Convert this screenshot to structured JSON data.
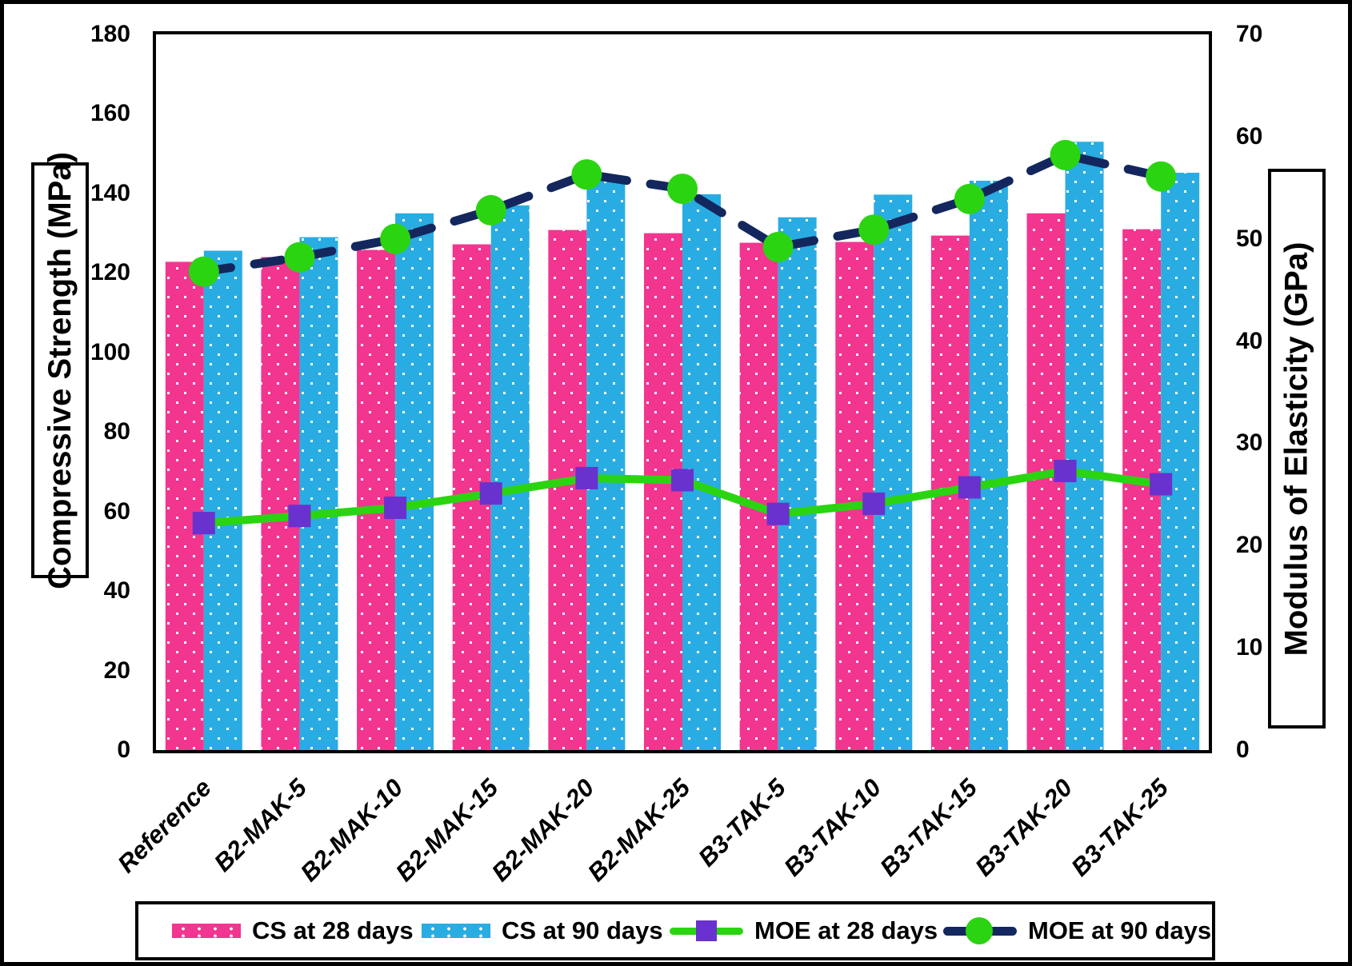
{
  "chart_data": {
    "type": "combo-bar-line",
    "title": "",
    "categories": [
      "Reference",
      "B2-MAK-5",
      "B2-MAK-10",
      "B2-MAK-15",
      "B2-MAK-20",
      "B2-MAK-25",
      "B3-TAK-5",
      "B3-TAK-10",
      "B3-TAK-15",
      "B3-TAK-20",
      "B3-TAK-25"
    ],
    "bar_series": [
      {
        "name": "CS at 28 days",
        "axis": "left",
        "color": "#F2358F",
        "dot_color": "#ffffff",
        "values": [
          122.8,
          124.0,
          125.8,
          127.2,
          130.8,
          130.0,
          127.6,
          127.8,
          129.4,
          135.0,
          131.0
        ]
      },
      {
        "name": "CS at 90 days",
        "axis": "left",
        "color": "#29ACE2",
        "dot_color": "#ffffff",
        "values": [
          125.6,
          129.0,
          135.0,
          137.0,
          143.2,
          139.8,
          134.0,
          139.7,
          143.2,
          153.0,
          145.2
        ]
      }
    ],
    "line_series": [
      {
        "name": "MOE at 28 days",
        "axis": "right",
        "line_color": "#2BD411",
        "line_style": "solid",
        "marker": "square",
        "marker_color": "#6931CE",
        "values": [
          22.2,
          22.9,
          23.7,
          25.1,
          26.6,
          26.4,
          23.1,
          24.1,
          25.7,
          27.3,
          26.0
        ]
      },
      {
        "name": "MOE at 90 days",
        "axis": "right",
        "line_color": "#13275E",
        "line_style": "dashed",
        "marker": "circle",
        "marker_color": "#2BD411",
        "values": [
          46.8,
          48.2,
          50.0,
          52.8,
          56.3,
          54.9,
          49.2,
          50.9,
          53.9,
          58.2,
          56.1
        ]
      }
    ],
    "left_axis": {
      "label": "Compressive Strength (MPa)",
      "min": 0,
      "max": 180,
      "tick_step": 20,
      "ticks": [
        0,
        20,
        40,
        60,
        80,
        100,
        120,
        140,
        160,
        180
      ]
    },
    "right_axis": {
      "label": "Modulus of Elasticity (GPa)",
      "min": 0,
      "max": 70,
      "tick_step": 10,
      "ticks": [
        0,
        10,
        20,
        30,
        40,
        50,
        60,
        70
      ]
    },
    "legend_position": "bottom",
    "grid": false
  }
}
